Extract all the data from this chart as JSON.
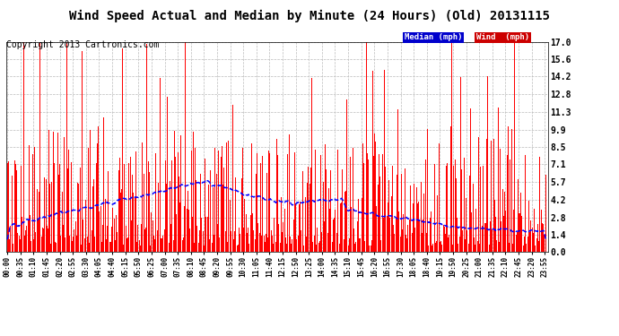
{
  "title": "Wind Speed Actual and Median by Minute (24 Hours) (Old) 20131115",
  "copyright": "Copyright 2013 Cartronics.com",
  "ylabel_values": [
    0.0,
    1.4,
    2.8,
    4.2,
    5.7,
    7.1,
    8.5,
    9.9,
    11.3,
    12.8,
    14.2,
    15.6,
    17.0
  ],
  "ymax": 17.0,
  "ymin": 0.0,
  "legend_median_label": "Median (mph)",
  "legend_wind_label": "Wind  (mph)",
  "legend_median_color": "#0000cc",
  "legend_wind_color": "#cc0000",
  "bg_color": "#ffffff",
  "grid_color": "#bbbbbb",
  "bar_color": "#ff0000",
  "median_color": "#0000ff",
  "title_fontsize": 10,
  "copyright_fontsize": 7,
  "tick_interval": 35
}
